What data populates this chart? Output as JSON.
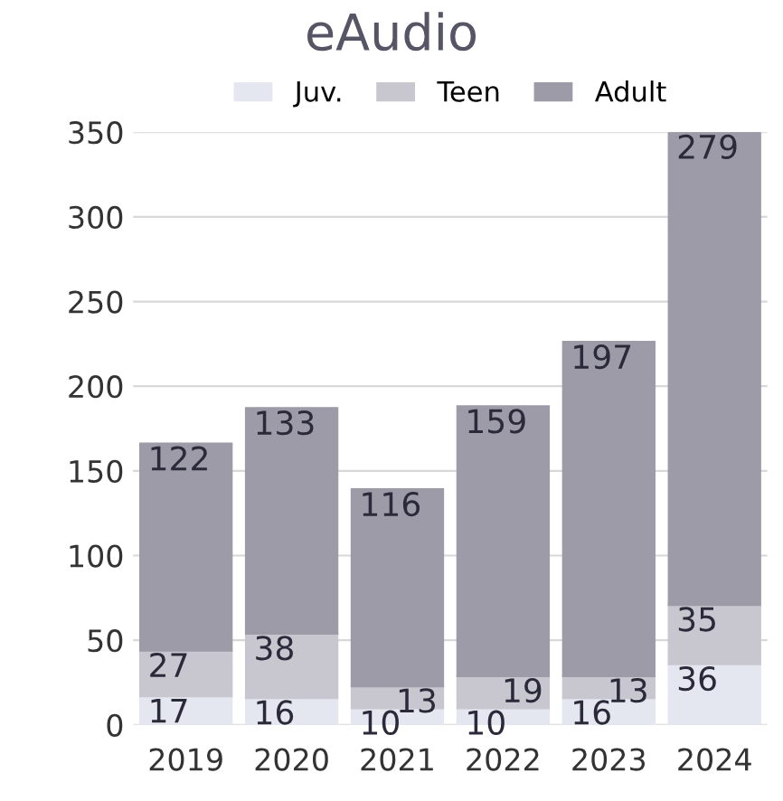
{
  "chart_data": {
    "type": "bar",
    "title": "eAudio",
    "stacked": true,
    "categories": [
      "2019",
      "2020",
      "2021",
      "2022",
      "2023",
      "2024"
    ],
    "series": [
      {
        "name": "Juv.",
        "color": "#e4e7ef",
        "values": [
          17,
          16,
          10,
          10,
          16,
          36
        ]
      },
      {
        "name": "Teen",
        "color": "#c8c7cf",
        "values": [
          27,
          38,
          13,
          19,
          13,
          35
        ]
      },
      {
        "name": "Adult",
        "color": "#9d9ba7",
        "values": [
          122,
          133,
          116,
          159,
          197,
          279
        ]
      }
    ],
    "ylim": [
      0,
      350
    ],
    "yticks": [
      0,
      50,
      100,
      150,
      200,
      250,
      300,
      350
    ],
    "grid": "y",
    "legend": "top",
    "data_labels": true
  }
}
